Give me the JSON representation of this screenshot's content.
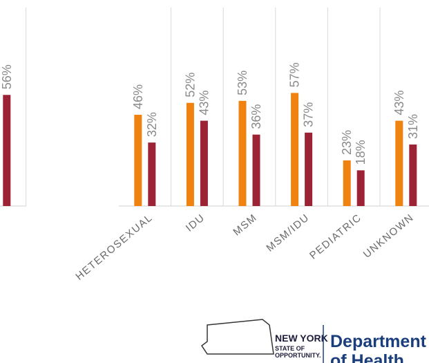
{
  "chart_data": [
    {
      "type": "bar",
      "categories": [
        null
      ],
      "series": [
        {
          "color": "#9b2335",
          "values": [
            56
          ],
          "value_labels": [
            "56%"
          ]
        }
      ],
      "ylim": [
        0,
        100
      ]
    },
    {
      "type": "bar",
      "categories": [
        "HETEROSEXUAL",
        "IDU",
        "MSM",
        "MSM/IDU",
        "PEDIATRIC",
        "UNKNOWN"
      ],
      "series": [
        {
          "color": "#f0820f",
          "values": [
            46,
            52,
            53,
            57,
            23,
            43
          ],
          "value_labels": [
            "46%",
            "52%",
            "53%",
            "57%",
            "23%",
            "43%"
          ]
        },
        {
          "color": "#9b2335",
          "values": [
            32,
            43,
            36,
            37,
            18,
            31
          ],
          "value_labels": [
            "32%",
            "43%",
            "36%",
            "37%",
            "18%",
            "31%"
          ]
        }
      ],
      "ylim": [
        0,
        100
      ]
    }
  ],
  "logo": {
    "state": "NEW YORK",
    "tagline1": "STATE OF",
    "tagline2": "OPPORTUNITY.",
    "dept1": "Department",
    "dept2": "of Health"
  }
}
